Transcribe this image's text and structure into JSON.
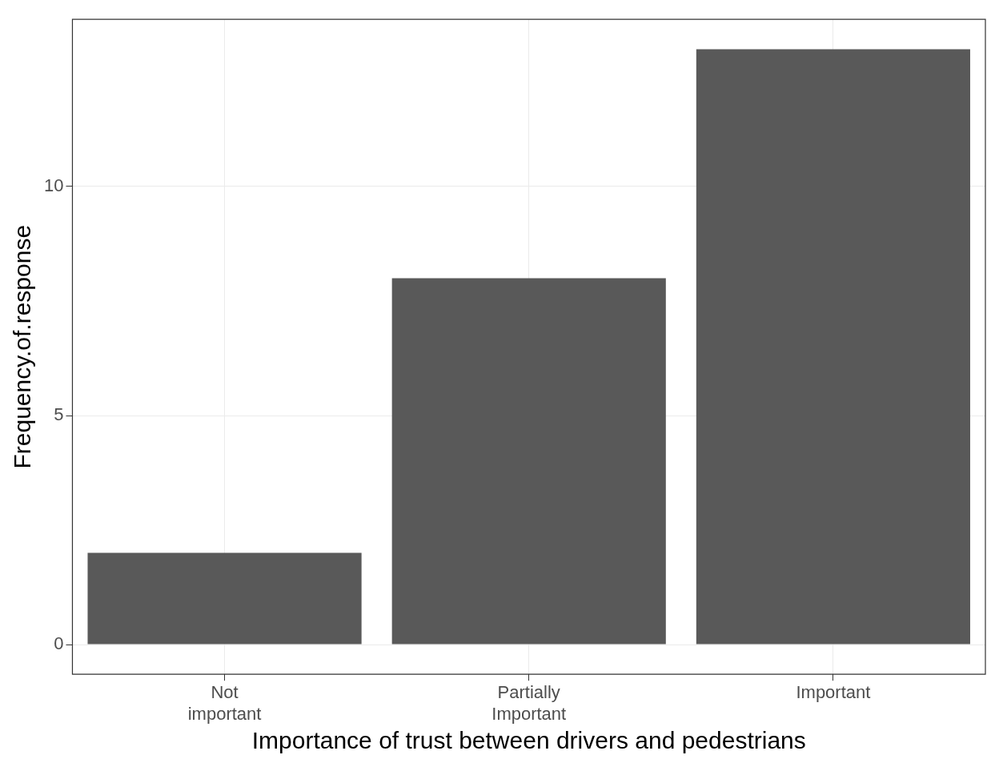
{
  "chart_data": {
    "type": "bar",
    "xlabel": "Importance of trust between drivers and pedestrians",
    "ylabel": "Frequency.of.response",
    "categories": [
      "Not important",
      "Partially Important",
      "Important"
    ],
    "values": [
      2,
      8,
      13
    ],
    "color": "#595959",
    "ylim": [
      -0.65,
      13.65
    ],
    "yticks": [
      0,
      5,
      10
    ],
    "grid": true,
    "legend": false
  }
}
